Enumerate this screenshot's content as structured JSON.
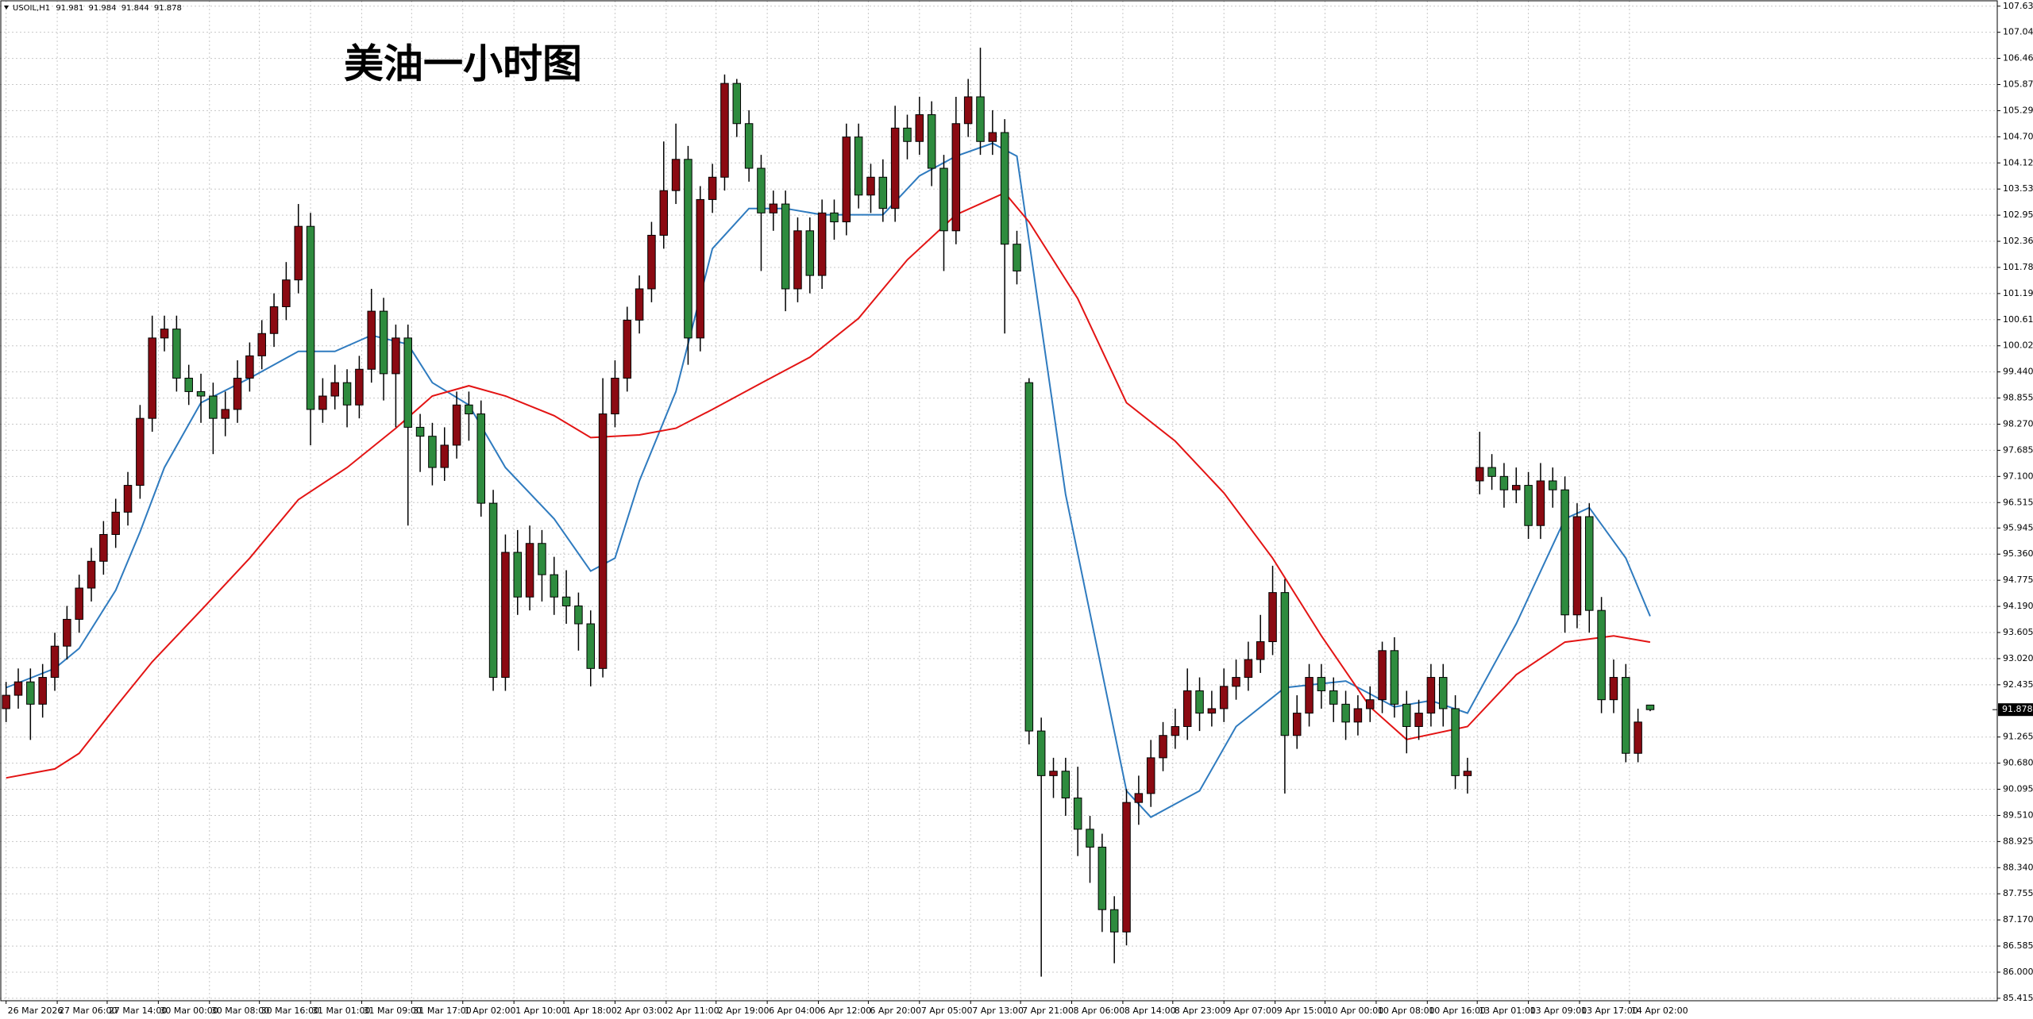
{
  "chart_data": {
    "type": "candlestick",
    "title": "美油一小时图",
    "header": {
      "symbol": "USOIL,H1",
      "open": 91.981,
      "high": 91.984,
      "low": 91.844,
      "close": 91.878
    },
    "last_price": 91.878,
    "up_color": "#8b0a12",
    "down_color": "#2e8b3e",
    "grid": true,
    "xlim": [
      -0.5,
      163.5
    ],
    "ylim": [
      85.36,
      107.75
    ],
    "xticks": [
      {
        "value": 0,
        "label": "26 Mar 2026"
      },
      {
        "value": 4.2,
        "label": "27 Mar 06:00"
      },
      {
        "value": 8.3,
        "label": "27 Mar 14:00"
      },
      {
        "value": 12.5,
        "label": "30 Mar 00:00"
      },
      {
        "value": 16.7,
        "label": "30 Mar 08:00"
      },
      {
        "value": 20.8,
        "label": "30 Mar 16:00"
      },
      {
        "value": 25,
        "label": "31 Mar 01:00"
      },
      {
        "value": 29.2,
        "label": "31 Mar 09:00"
      },
      {
        "value": 33.3,
        "label": "31 Mar 17:00"
      },
      {
        "value": 37.5,
        "label": "1 Apr 02:00"
      },
      {
        "value": 41.7,
        "label": "1 Apr 10:00"
      },
      {
        "value": 45.8,
        "label": "1 Apr 18:00"
      },
      {
        "value": 50,
        "label": "2 Apr 03:00"
      },
      {
        "value": 54.2,
        "label": "2 Apr 11:00"
      },
      {
        "value": 58.3,
        "label": "2 Apr 19:00"
      },
      {
        "value": 62.5,
        "label": "6 Apr 04:00"
      },
      {
        "value": 66.7,
        "label": "6 Apr 12:00"
      },
      {
        "value": 70.8,
        "label": "6 Apr 20:00"
      },
      {
        "value": 75,
        "label": "7 Apr 05:00"
      },
      {
        "value": 79.2,
        "label": "7 Apr 13:00"
      },
      {
        "value": 83.3,
        "label": "7 Apr 21:00"
      },
      {
        "value": 87.5,
        "label": "8 Apr 06:00"
      },
      {
        "value": 91.7,
        "label": "8 Apr 14:00"
      },
      {
        "value": 95.8,
        "label": "8 Apr 23:00"
      },
      {
        "value": 100,
        "label": "9 Apr 07:00"
      },
      {
        "value": 104.2,
        "label": "9 Apr 15:00"
      },
      {
        "value": 108.3,
        "label": "10 Apr 00:00"
      },
      {
        "value": 112.5,
        "label": "10 Apr 08:00"
      },
      {
        "value": 116.7,
        "label": "10 Apr 16:00"
      },
      {
        "value": 120.8,
        "label": "13 Apr 01:00"
      },
      {
        "value": 125,
        "label": "13 Apr 09:00"
      },
      {
        "value": 129.2,
        "label": "13 Apr 17:00"
      },
      {
        "value": 133.3,
        "label": "14 Apr 02:00"
      }
    ],
    "yticks": [
      {
        "value": 107.63,
        "label": "107.630"
      },
      107.045,
      {
        "value": 106.46,
        "label": "106.460"
      },
      105.875,
      {
        "value": 105.29,
        "label": "105.290"
      },
      104.705,
      {
        "value": 104.12,
        "label": "104.120"
      },
      103.535,
      {
        "value": 102.95,
        "label": "102.950"
      },
      102.365,
      {
        "value": 101.78,
        "label": "101.780"
      },
      101.195,
      {
        "value": 100.61,
        "label": "100.610"
      },
      100.025,
      {
        "value": 99.44,
        "label": "99.440"
      },
      98.855,
      {
        "value": 98.27,
        "label": "98.270"
      },
      97.685,
      {
        "value": 97.1,
        "label": "97.100"
      },
      96.515,
      95.945,
      {
        "value": 95.36,
        "label": "95.360"
      },
      94.775,
      {
        "value": 94.19,
        "label": "94.190"
      },
      93.605,
      {
        "value": 93.02,
        "label": "93.020"
      },
      92.435,
      91.265,
      {
        "value": 90.68,
        "label": "90.680"
      },
      90.095,
      {
        "value": 89.51,
        "label": "89.510"
      },
      88.925,
      {
        "value": 88.34,
        "label": "88.340"
      },
      87.755,
      {
        "value": 87.17,
        "label": "87.170"
      },
      86.585,
      {
        "value": 86.0,
        "label": "86.000"
      },
      85.415
    ],
    "open": [
      91.9,
      92.2,
      92.5,
      92.0,
      92.6,
      93.3,
      93.9,
      94.6,
      95.2,
      95.8,
      96.3,
      96.9,
      98.4,
      100.2,
      100.4,
      99.3,
      99.0,
      98.9,
      98.4,
      98.6,
      99.3,
      99.8,
      100.3,
      100.9,
      101.5,
      102.7,
      98.6,
      98.9,
      99.2,
      98.7,
      99.5,
      100.8,
      99.4,
      100.2,
      98.2,
      98.0,
      97.3,
      97.8,
      98.7,
      98.5,
      96.5,
      92.6,
      95.4,
      94.4,
      95.6,
      94.9,
      94.4,
      94.2,
      93.8,
      92.8,
      98.5,
      99.3,
      100.6,
      101.3,
      102.5,
      103.5,
      104.2,
      100.2,
      103.3,
      103.8,
      105.9,
      105.0,
      104.0,
      103.0,
      103.2,
      101.3,
      102.6,
      101.6,
      103.0,
      102.8,
      104.7,
      103.4,
      103.8,
      103.1,
      104.9,
      104.6,
      105.2,
      104.0,
      102.6,
      105.0,
      105.6,
      104.6,
      104.8,
      102.3,
      99.2,
      91.4,
      90.4,
      90.5,
      89.9,
      89.2,
      88.8,
      87.4,
      86.9,
      89.8,
      90.0,
      90.8,
      91.3,
      91.5,
      92.3,
      91.8,
      91.9,
      92.4,
      92.6,
      93.0,
      93.4,
      94.5,
      91.3,
      91.8,
      92.6,
      92.3,
      92.0,
      91.6,
      91.9,
      92.1,
      93.2,
      92.0,
      91.5,
      91.8,
      92.6,
      91.9,
      90.4,
      97.0,
      97.3,
      97.1,
      96.8,
      96.9,
      96.0,
      97.0,
      96.8,
      94.0,
      96.2,
      94.1,
      92.1,
      92.6,
      90.9,
      91.981
    ],
    "high": [
      92.5,
      92.8,
      92.8,
      92.9,
      93.6,
      94.2,
      94.9,
      95.5,
      96.1,
      96.6,
      97.2,
      98.7,
      100.7,
      100.7,
      100.7,
      99.6,
      99.4,
      99.2,
      99.0,
      99.7,
      100.1,
      100.6,
      101.2,
      101.9,
      103.2,
      103.0,
      99.3,
      99.6,
      99.5,
      99.8,
      101.3,
      101.1,
      100.5,
      100.5,
      98.5,
      98.3,
      98.2,
      99.0,
      99.0,
      98.8,
      96.8,
      95.8,
      95.9,
      96.0,
      95.9,
      95.3,
      95.0,
      94.5,
      94.1,
      99.3,
      99.7,
      100.9,
      101.6,
      102.8,
      104.6,
      105.0,
      104.5,
      103.6,
      104.1,
      106.1,
      106.0,
      105.3,
      104.3,
      103.5,
      103.5,
      102.9,
      102.9,
      103.3,
      103.3,
      105.0,
      105.0,
      104.1,
      104.2,
      105.4,
      105.2,
      105.6,
      105.5,
      104.3,
      105.6,
      106.0,
      106.7,
      105.3,
      105.1,
      102.6,
      99.3,
      91.7,
      90.8,
      90.8,
      90.6,
      89.5,
      89.1,
      87.7,
      90.1,
      90.4,
      91.2,
      91.6,
      91.9,
      92.8,
      92.6,
      92.3,
      92.8,
      93.0,
      93.4,
      94.0,
      95.1,
      94.8,
      92.2,
      92.9,
      92.9,
      92.6,
      92.3,
      92.2,
      92.4,
      93.4,
      93.5,
      92.3,
      92.1,
      92.9,
      92.9,
      92.2,
      90.8,
      98.1,
      97.6,
      97.4,
      97.3,
      97.2,
      97.4,
      97.3,
      97.1,
      96.5,
      96.5,
      94.4,
      93.0,
      92.9,
      91.9,
      91.984
    ],
    "low": [
      91.6,
      91.9,
      91.2,
      91.7,
      92.3,
      93.0,
      93.6,
      94.3,
      94.9,
      95.5,
      96.0,
      96.6,
      98.1,
      99.9,
      99.0,
      98.7,
      98.3,
      97.6,
      98.0,
      98.3,
      99.0,
      99.5,
      100.0,
      100.6,
      101.2,
      97.8,
      98.3,
      98.6,
      98.2,
      98.4,
      99.2,
      98.8,
      98.2,
      96.0,
      97.2,
      96.9,
      97.0,
      97.5,
      97.9,
      96.2,
      92.3,
      92.3,
      94.0,
      94.1,
      94.3,
      94.0,
      93.8,
      93.2,
      92.4,
      92.6,
      98.2,
      99.0,
      100.3,
      101.0,
      102.2,
      103.2,
      99.6,
      99.9,
      103.0,
      103.5,
      104.7,
      103.7,
      101.7,
      102.6,
      100.8,
      101.0,
      101.2,
      101.3,
      102.4,
      102.5,
      103.1,
      103.0,
      102.8,
      102.8,
      104.2,
      104.3,
      103.6,
      101.7,
      102.3,
      104.7,
      104.3,
      104.3,
      100.3,
      101.4,
      91.1,
      85.9,
      89.9,
      89.5,
      88.6,
      88.0,
      86.9,
      86.2,
      86.6,
      89.3,
      89.7,
      90.5,
      91.0,
      91.2,
      91.4,
      91.5,
      91.6,
      92.1,
      92.3,
      92.7,
      93.1,
      90.0,
      91.0,
      91.5,
      91.9,
      91.6,
      91.2,
      91.3,
      91.6,
      91.8,
      91.7,
      90.9,
      91.2,
      91.5,
      91.5,
      90.1,
      90.0,
      96.7,
      96.8,
      96.4,
      96.5,
      95.7,
      95.7,
      96.4,
      93.6,
      93.7,
      93.6,
      91.8,
      91.8,
      90.7,
      90.7,
      91.844
    ],
    "close": [
      92.2,
      92.5,
      92.0,
      92.6,
      93.3,
      93.9,
      94.6,
      95.2,
      95.8,
      96.3,
      96.9,
      98.4,
      100.2,
      100.4,
      99.3,
      99.0,
      98.9,
      98.4,
      98.6,
      99.3,
      99.8,
      100.3,
      100.9,
      101.5,
      102.7,
      98.6,
      98.9,
      99.2,
      98.7,
      99.5,
      100.8,
      99.4,
      100.2,
      98.2,
      98.0,
      97.3,
      97.8,
      98.7,
      98.5,
      96.5,
      92.6,
      95.4,
      94.4,
      95.6,
      94.9,
      94.4,
      94.2,
      93.8,
      92.8,
      98.5,
      99.3,
      100.6,
      101.3,
      102.5,
      103.5,
      104.2,
      100.2,
      103.3,
      103.8,
      105.9,
      105.0,
      104.0,
      103.0,
      103.2,
      101.3,
      102.6,
      101.6,
      103.0,
      102.8,
      104.7,
      103.4,
      103.8,
      103.1,
      104.9,
      104.6,
      105.2,
      104.0,
      102.6,
      105.0,
      105.6,
      104.6,
      104.8,
      102.3,
      101.7,
      91.4,
      90.4,
      90.5,
      89.9,
      89.2,
      88.8,
      87.4,
      86.9,
      89.8,
      90.0,
      90.8,
      91.3,
      91.5,
      92.3,
      91.8,
      91.9,
      92.4,
      92.6,
      93.0,
      93.4,
      94.5,
      91.3,
      91.8,
      92.6,
      92.3,
      92.0,
      91.6,
      91.9,
      92.1,
      93.2,
      92.0,
      91.5,
      91.8,
      92.6,
      91.9,
      90.4,
      90.5,
      97.3,
      97.1,
      96.8,
      96.9,
      96.0,
      97.0,
      96.8,
      94.0,
      96.2,
      94.1,
      92.1,
      92.6,
      90.9,
      91.6,
      91.878
    ],
    "lines": [
      {
        "color": "#2f7bbf",
        "x": [
          0,
          4,
          6,
          9,
          11,
          13,
          16,
          20,
          24,
          27,
          30,
          33,
          35,
          38,
          41,
          45,
          48,
          50,
          52,
          55,
          58,
          61,
          64,
          67,
          72,
          75,
          78,
          81,
          83,
          87,
          92,
          94,
          98,
          101,
          105,
          110,
          114,
          117,
          120,
          124,
          128,
          130,
          133,
          135
        ],
        "values": [
          92.37,
          92.8,
          93.25,
          94.55,
          95.86,
          97.3,
          98.75,
          99.3,
          99.9,
          99.9,
          100.26,
          100.06,
          99.2,
          98.7,
          97.3,
          96.15,
          94.98,
          95.27,
          97.0,
          99.0,
          102.2,
          103.1,
          103.1,
          102.96,
          102.96,
          103.83,
          104.27,
          104.56,
          104.27,
          96.7,
          90.06,
          89.47,
          90.06,
          91.5,
          92.37,
          92.52,
          91.94,
          92.08,
          91.8,
          93.8,
          96.15,
          96.4,
          95.27,
          93.97
        ]
      },
      {
        "color": "#e31414",
        "x": [
          0,
          4,
          6,
          9,
          12,
          16,
          20,
          24,
          28,
          32,
          35,
          38,
          41,
          45,
          48,
          52,
          55,
          58,
          62,
          66,
          70,
          74,
          78,
          82,
          84,
          88,
          92,
          96,
          100,
          104,
          108,
          112,
          115,
          120,
          124,
          128,
          132,
          135
        ],
        "values": [
          90.35,
          90.55,
          90.9,
          91.94,
          92.95,
          94.1,
          95.27,
          96.58,
          97.3,
          98.18,
          98.9,
          99.13,
          98.9,
          98.46,
          97.97,
          98.03,
          98.18,
          98.6,
          99.19,
          99.77,
          100.64,
          101.95,
          102.96,
          103.45,
          102.8,
          101.08,
          98.75,
          97.89,
          96.73,
          95.27,
          93.53,
          91.94,
          91.21,
          91.5,
          92.66,
          93.39,
          93.53,
          93.39
        ]
      }
    ]
  }
}
